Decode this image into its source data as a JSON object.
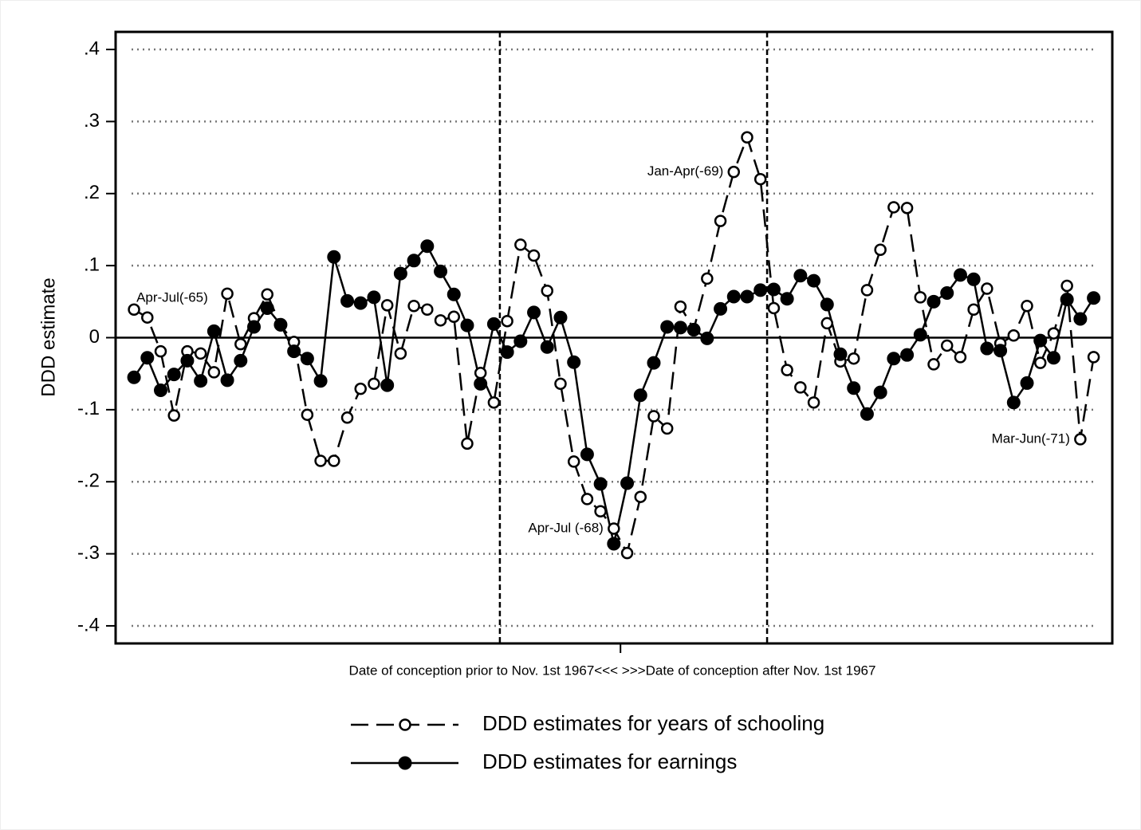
{
  "chart_data": {
    "type": "line",
    "ylabel": "DDD estimate",
    "xlabel": "Date of conception prior to Nov. 1st 1967<<< >>>Date of conception after Nov. 1st 1967",
    "x": [
      1,
      2,
      3,
      4,
      5,
      6,
      7,
      8,
      9,
      10,
      11,
      12,
      13,
      14,
      15,
      16,
      17,
      18,
      19,
      20,
      21,
      22,
      23,
      24,
      25,
      26,
      27,
      28,
      29,
      30,
      31,
      32,
      33,
      34,
      35,
      36,
      37,
      38,
      39,
      40,
      41,
      42,
      43,
      44,
      45,
      46,
      47,
      48,
      49,
      50,
      51,
      52,
      53,
      54,
      55,
      56,
      57,
      58,
      59,
      60,
      61,
      62,
      63,
      64,
      65,
      66,
      67,
      68,
      69,
      70,
      71,
      72,
      73
    ],
    "series": [
      {
        "name": "DDD estimates for years of schooling",
        "color": "#000000",
        "dash": true,
        "marker": "hollow",
        "values": [
          0.039,
          0.028,
          -0.019,
          -0.108,
          -0.019,
          -0.022,
          -0.048,
          0.061,
          -0.009,
          0.027,
          0.06,
          0.017,
          -0.006,
          -0.107,
          -0.171,
          -0.171,
          -0.111,
          -0.071,
          -0.064,
          0.045,
          -0.022,
          0.044,
          0.039,
          0.024,
          0.029,
          -0.147,
          -0.049,
          -0.09,
          0.023,
          0.129,
          0.114,
          0.065,
          -0.064,
          -0.172,
          -0.224,
          -0.241,
          -0.265,
          -0.299,
          -0.221,
          -0.109,
          -0.126,
          0.043,
          0.012,
          0.082,
          0.162,
          0.23,
          0.278,
          0.22,
          0.041,
          -0.045,
          -0.069,
          -0.09,
          0.02,
          -0.033,
          -0.029,
          0.066,
          0.122,
          0.181,
          0.18,
          0.056,
          -0.037,
          -0.011,
          -0.027,
          0.039,
          0.068,
          -0.008,
          0.003,
          0.044,
          -0.035,
          0.006,
          0.072,
          -0.141,
          -0.027
        ]
      },
      {
        "name": "DDD estimates for earnings",
        "color": "#000000",
        "dash": false,
        "marker": "filled",
        "values": [
          -0.055,
          -0.028,
          -0.073,
          -0.051,
          -0.032,
          -0.06,
          0.009,
          -0.059,
          -0.032,
          0.015,
          0.041,
          0.018,
          -0.019,
          -0.029,
          -0.06,
          0.112,
          0.051,
          0.048,
          0.056,
          -0.066,
          0.089,
          0.107,
          0.127,
          0.092,
          0.06,
          0.017,
          -0.064,
          0.019,
          -0.02,
          -0.005,
          0.035,
          -0.013,
          0.028,
          -0.034,
          -0.162,
          -0.203,
          -0.286,
          -0.202,
          -0.08,
          -0.035,
          0.015,
          0.014,
          0.011,
          -0.001,
          0.04,
          0.057,
          0.057,
          0.066,
          0.067,
          0.054,
          0.086,
          0.079,
          0.046,
          -0.023,
          -0.07,
          -0.106,
          -0.076,
          -0.029,
          -0.024,
          0.004,
          0.05,
          0.062,
          0.087,
          0.081,
          -0.015,
          -0.018,
          -0.09,
          -0.063,
          -0.004,
          -0.028,
          0.053,
          0.026,
          0.055
        ]
      }
    ],
    "annotations": [
      {
        "text": "Apr-Jul(-65)",
        "x": 1,
        "y": 0.039,
        "side": "right"
      },
      {
        "text": "Jan-Apr(-69)",
        "x": 46,
        "y": 0.23,
        "side": "left"
      },
      {
        "text": "Apr-Jul (-68)",
        "x": 37,
        "y": -0.265,
        "side": "left"
      },
      {
        "text": "Mar-Jun(-71)",
        "x": 72,
        "y": -0.141,
        "side": "left"
      }
    ],
    "vlines": [
      28.45,
      48.5
    ],
    "xlim": [
      -0.38,
      74.4
    ],
    "xticks": [
      37.5
    ],
    "ylim": [
      -0.4244,
      0.4244
    ],
    "yticks": [
      {
        "value": 0.4,
        "label": ".4"
      },
      {
        "value": 0.3,
        "label": ".3"
      },
      {
        "value": 0.2,
        "label": ".2"
      },
      {
        "value": 0.1,
        "label": ".1"
      },
      0,
      {
        "value": -0.1,
        "label": "-.1"
      },
      {
        "value": -0.2,
        "label": "-.2"
      },
      {
        "value": -0.3,
        "label": "-.3"
      },
      {
        "value": -0.4,
        "label": "-.4"
      }
    ],
    "grid": true,
    "legend": "bottom"
  }
}
